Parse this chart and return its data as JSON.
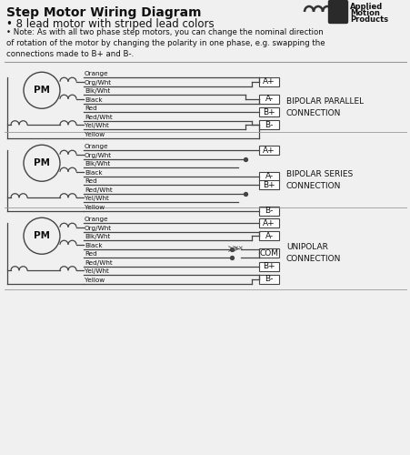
{
  "title": "Step Motor Wiring Diagram",
  "subtitle": "• 8 lead motor with striped lead colors",
  "note": "• Note: As with all two phase step motors, you can change the nominal direction\nof rotation of the motor by changing the polarity in one phase, e.g. swapping the\nconnections made to B+ and B-.",
  "bg_color": "#f0f0f0",
  "line_color": "#444444",
  "text_color": "#111111",
  "logo_text": [
    "Applied",
    "Motion",
    "Products"
  ],
  "divider_color": "#999999",
  "diagram_bg": "#e8e8e8",
  "parallel_label": "BIPOLAR PARALLEL\nCONNECTION",
  "series_label": "BIPOLAR SERIES\nCONNECTION",
  "unipolar_label": "UNIPOLAR\nCONNECTION",
  "wire_names": [
    "Orange",
    "Org/Wht",
    "Blk/Wht",
    "Black",
    "Red",
    "Red/Wht",
    "Yel/Wht",
    "Yellow"
  ]
}
